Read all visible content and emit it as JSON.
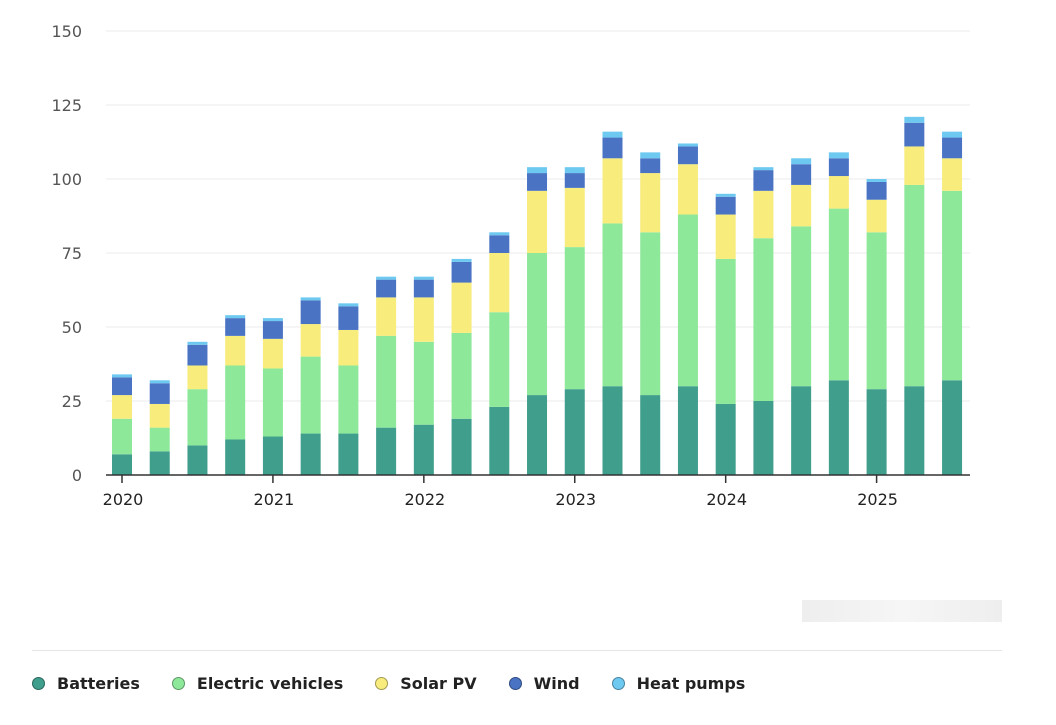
{
  "chart_data": {
    "type": "bar",
    "stacked": true,
    "title": "",
    "xlabel": "",
    "ylabel": "",
    "ylim": [
      0,
      150
    ],
    "yticks": [
      0,
      25,
      50,
      75,
      100,
      125,
      150
    ],
    "grid": true,
    "legend_position": "bottom-left",
    "x_tick_labels": [
      {
        "label": "2020",
        "index": 0
      },
      {
        "label": "2021",
        "index": 4
      },
      {
        "label": "2022",
        "index": 8
      },
      {
        "label": "2023",
        "index": 12
      },
      {
        "label": "2024",
        "index": 16
      },
      {
        "label": "2025",
        "index": 20
      }
    ],
    "categories": [
      "2020 Q1",
      "2020 Q2",
      "2020 Q3",
      "2020 Q4",
      "2021 Q1",
      "2021 Q2",
      "2021 Q3",
      "2021 Q4",
      "2022 Q1",
      "2022 Q2",
      "2022 Q3",
      "2022 Q4",
      "2023 Q1",
      "2023 Q2",
      "2023 Q3",
      "2023 Q4",
      "2024 Q1",
      "2024 Q2",
      "2024 Q3",
      "2024 Q4",
      "2025 Q1",
      "2025 Q2",
      "2025 Q3"
    ],
    "series": [
      {
        "name": "Batteries",
        "color": "#3f9e8c",
        "values": [
          7,
          8,
          10,
          12,
          13,
          14,
          14,
          16,
          17,
          19,
          23,
          27,
          29,
          30,
          27,
          30,
          24,
          25,
          30,
          32,
          29,
          30,
          32
        ]
      },
      {
        "name": "Electric vehicles",
        "color": "#8ee89a",
        "values": [
          12,
          8,
          19,
          25,
          23,
          26,
          23,
          31,
          28,
          29,
          32,
          48,
          48,
          55,
          55,
          58,
          49,
          55,
          54,
          58,
          53,
          68,
          64
        ]
      },
      {
        "name": "Solar PV",
        "color": "#f7ec7c",
        "values": [
          8,
          8,
          8,
          10,
          10,
          11,
          12,
          13,
          15,
          17,
          20,
          21,
          20,
          22,
          20,
          17,
          15,
          16,
          14,
          11,
          11,
          13,
          11
        ]
      },
      {
        "name": "Wind",
        "color": "#4a73c4",
        "values": [
          6,
          7,
          7,
          6,
          6,
          8,
          8,
          6,
          6,
          7,
          6,
          6,
          5,
          7,
          5,
          6,
          6,
          7,
          7,
          6,
          6,
          8,
          7
        ]
      },
      {
        "name": "Heat pumps",
        "color": "#6ec9f0",
        "values": [
          1,
          1,
          1,
          1,
          1,
          1,
          1,
          1,
          1,
          1,
          1,
          2,
          2,
          2,
          2,
          1,
          1,
          1,
          2,
          2,
          1,
          2,
          2
        ]
      }
    ]
  }
}
